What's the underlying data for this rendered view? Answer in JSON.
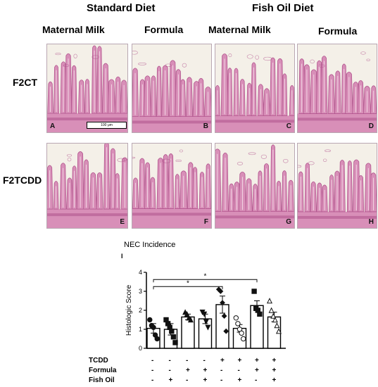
{
  "figure": {
    "diet_headers": [
      "Standard Diet",
      "Fish Oil Diet"
    ],
    "column_headers": [
      "Maternal Milk",
      "Formula",
      "Maternal Milk",
      "Formula"
    ],
    "row_labels": [
      "F2CT",
      "F2TCDD"
    ],
    "panels": [
      {
        "letter": "A"
      },
      {
        "letter": "B"
      },
      {
        "letter": "C"
      },
      {
        "letter": "D"
      },
      {
        "letter": "E"
      },
      {
        "letter": "F"
      },
      {
        "letter": "G"
      },
      {
        "letter": "H"
      }
    ],
    "scale_bar": "100 μm",
    "panel_i_letter": "I",
    "colors": {
      "tissue": "#d88fb8",
      "tissue_dark": "#b2568e",
      "lumen": "#f4f0e8"
    }
  },
  "chart_data": {
    "type": "bar",
    "title": "NEC Incidence",
    "ylabel": "Histologic Score",
    "ylim": [
      0,
      4
    ],
    "yticks": [
      0,
      1,
      2,
      3,
      4
    ],
    "values": [
      1.05,
      1.0,
      1.65,
      1.55,
      2.3,
      1.05,
      2.25,
      1.65
    ],
    "errors": [
      0.25,
      0.3,
      0.15,
      0.25,
      0.45,
      0.2,
      0.25,
      0.25
    ],
    "points": [
      [
        1.5,
        1.2,
        1.1,
        0.7,
        0.5
      ],
      [
        1.5,
        1.3,
        1.1,
        0.9,
        0.6,
        0.3
      ],
      [
        1.9,
        1.8,
        1.6,
        1.5
      ],
      [
        1.9,
        1.8,
        1.4,
        1.1
      ],
      [
        3.1,
        3.0,
        2.4,
        1.7,
        0.9
      ],
      [
        1.6,
        1.3,
        1.0,
        0.8,
        0.5
      ],
      [
        3.0,
        2.1,
        2.0,
        1.8
      ],
      [
        2.5,
        2.0,
        1.7,
        1.5,
        1.2,
        0.9
      ]
    ],
    "markers": [
      "circle",
      "square",
      "triangle",
      "down-triangle",
      "diamond",
      "circle",
      "square",
      "triangle"
    ],
    "filled": [
      true,
      true,
      true,
      true,
      true,
      false,
      true,
      false
    ],
    "significance": [
      {
        "from": 1,
        "to": 5,
        "label": "*"
      },
      {
        "from": 1,
        "to": 7,
        "label": "*"
      }
    ],
    "table": {
      "rows": [
        {
          "label": "TCDD",
          "signs": [
            "-",
            "-",
            "-",
            "-",
            "+",
            "+",
            "+",
            "+"
          ]
        },
        {
          "label": "Formula",
          "signs": [
            "-",
            "-",
            "+",
            "+",
            "-",
            "-",
            "+",
            "+"
          ]
        },
        {
          "label": "Fish Oil",
          "signs": [
            "-",
            "+",
            "-",
            "+",
            "-",
            "+",
            "-",
            "+"
          ]
        }
      ]
    }
  }
}
